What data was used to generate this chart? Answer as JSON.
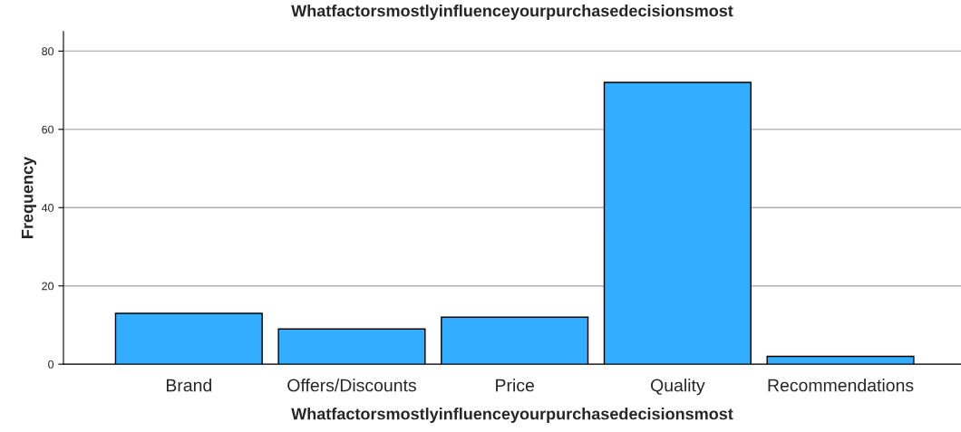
{
  "chart_data": {
    "type": "bar",
    "title": "Whatfactorsmostlyinfluenceyourpurchasedecisionsmost",
    "xlabel": "Whatfactorsmostlyinfluenceyourpurchasedecisionsmost",
    "ylabel": "Frequency",
    "categories": [
      "Brand",
      "Offers/Discounts",
      "Price",
      "Quality",
      "Recommendations"
    ],
    "values": [
      13,
      9,
      12,
      72,
      2
    ],
    "color": "#33adff",
    "ylim": [
      0,
      85
    ],
    "yticks": [
      0,
      20,
      40,
      60,
      80
    ],
    "grid": "y",
    "legend": false
  }
}
